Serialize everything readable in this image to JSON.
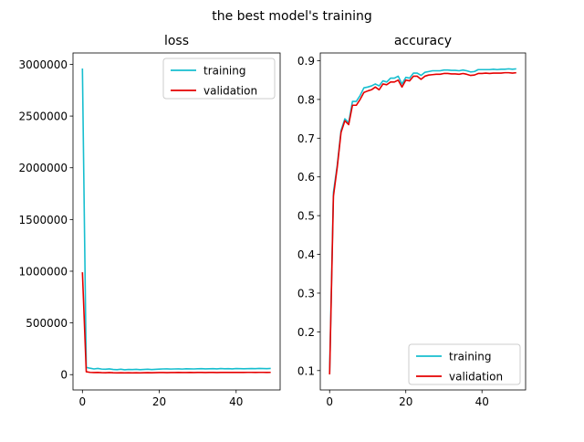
{
  "suptitle": "the best model's training",
  "chart_data": [
    {
      "type": "line",
      "title": "loss",
      "xlabel": "",
      "ylabel": "",
      "xlim": [
        -2.45,
        51.45
      ],
      "ylim": [
        -148000,
        3110000
      ],
      "xticks": [
        0,
        20,
        40
      ],
      "yticks": [
        0,
        500000,
        1000000,
        1500000,
        2000000,
        2500000,
        3000000
      ],
      "ytick_labels": [
        "0",
        "500000",
        "1000000",
        "1500000",
        "2000000",
        "2500000",
        "3000000"
      ],
      "grid": false,
      "legend_position": "top-right",
      "series": [
        {
          "name": "training",
          "color": "#17becf",
          "values": [
            2960000,
            70000,
            62000,
            55000,
            60000,
            54000,
            52000,
            56000,
            50000,
            48000,
            52000,
            47000,
            50000,
            49000,
            51000,
            48000,
            50000,
            52000,
            49000,
            51000,
            53000,
            55000,
            56000,
            54000,
            55000,
            56000,
            54000,
            57000,
            56000,
            55000,
            57000,
            58000,
            56000,
            57000,
            58000,
            56000,
            59000,
            57000,
            58000,
            56000,
            59000,
            58000,
            57000,
            58000,
            59000,
            58000,
            60000,
            59000,
            58000,
            60000
          ]
        },
        {
          "name": "validation",
          "color": "#e50000",
          "values": [
            990000,
            28000,
            22000,
            20000,
            21000,
            19000,
            18000,
            20000,
            18000,
            17000,
            18000,
            17000,
            18000,
            17000,
            18000,
            17000,
            18000,
            19000,
            18000,
            19000,
            20000,
            20000,
            19000,
            20000,
            20000,
            21000,
            20000,
            20000,
            21000,
            20000,
            21000,
            21000,
            20000,
            21000,
            21000,
            20000,
            21000,
            21000,
            22000,
            21000,
            21000,
            22000,
            21000,
            22000,
            22000,
            21000,
            22000,
            22000,
            21000,
            22000
          ]
        }
      ]
    },
    {
      "type": "line",
      "title": "accuracy",
      "xlabel": "",
      "ylabel": "",
      "xlim": [
        -2.45,
        51.45
      ],
      "ylim": [
        0.05,
        0.92
      ],
      "xticks": [
        0,
        20,
        40
      ],
      "yticks": [
        0.1,
        0.2,
        0.3,
        0.4,
        0.5,
        0.6,
        0.7,
        0.8,
        0.9
      ],
      "ytick_labels": [
        "0.1",
        "0.2",
        "0.3",
        "0.4",
        "0.5",
        "0.6",
        "0.7",
        "0.8",
        "0.9"
      ],
      "grid": false,
      "legend_position": "bottom-right",
      "series": [
        {
          "name": "training",
          "color": "#17becf",
          "values": [
            0.095,
            0.56,
            0.63,
            0.72,
            0.75,
            0.74,
            0.795,
            0.795,
            0.81,
            0.83,
            0.832,
            0.835,
            0.84,
            0.835,
            0.848,
            0.845,
            0.855,
            0.855,
            0.86,
            0.84,
            0.857,
            0.855,
            0.868,
            0.868,
            0.862,
            0.87,
            0.872,
            0.874,
            0.874,
            0.874,
            0.876,
            0.876,
            0.875,
            0.875,
            0.874,
            0.876,
            0.874,
            0.871,
            0.872,
            0.877,
            0.877,
            0.877,
            0.877,
            0.878,
            0.877,
            0.878,
            0.878,
            0.879,
            0.878,
            0.879
          ]
        },
        {
          "name": "validation",
          "color": "#e50000",
          "values": [
            0.09,
            0.55,
            0.625,
            0.715,
            0.745,
            0.735,
            0.785,
            0.785,
            0.8,
            0.818,
            0.822,
            0.825,
            0.832,
            0.825,
            0.84,
            0.838,
            0.845,
            0.845,
            0.85,
            0.832,
            0.85,
            0.848,
            0.86,
            0.86,
            0.852,
            0.86,
            0.863,
            0.864,
            0.865,
            0.865,
            0.867,
            0.867,
            0.866,
            0.866,
            0.865,
            0.867,
            0.865,
            0.862,
            0.863,
            0.867,
            0.867,
            0.868,
            0.867,
            0.868,
            0.868,
            0.868,
            0.869,
            0.869,
            0.868,
            0.869
          ]
        }
      ]
    }
  ]
}
